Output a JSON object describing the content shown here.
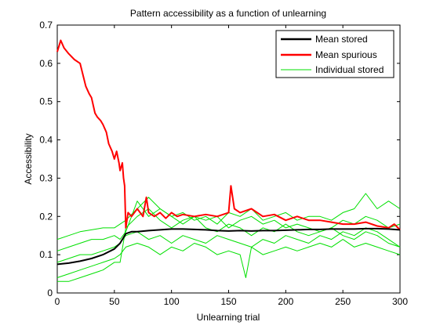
{
  "chart_data": {
    "type": "line",
    "title": "Pattern accessibility as a function of unlearning",
    "xlabel": "Unlearning trial",
    "ylabel": "Accessibility",
    "xlim": [
      0,
      300
    ],
    "ylim": [
      0,
      0.7
    ],
    "xticks": [
      "0",
      "50",
      "100",
      "150",
      "200",
      "250",
      "300"
    ],
    "yticks": [
      "0",
      "0.1",
      "0.2",
      "0.3",
      "0.4",
      "0.5",
      "0.6",
      "0.7"
    ],
    "grid": false,
    "legend_position": "top-right",
    "legend": [
      "Mean stored",
      "Mean spurious",
      "Individual stored"
    ],
    "series": [
      {
        "name": "Mean stored",
        "color": "#000000",
        "x": [
          0,
          10,
          20,
          30,
          40,
          50,
          55,
          60,
          65,
          70,
          80,
          90,
          100,
          110,
          120,
          130,
          140,
          150,
          160,
          170,
          180,
          190,
          200,
          210,
          220,
          230,
          240,
          250,
          260,
          270,
          280,
          290,
          300
        ],
        "y": [
          0.075,
          0.078,
          0.083,
          0.09,
          0.1,
          0.115,
          0.13,
          0.155,
          0.16,
          0.16,
          0.163,
          0.165,
          0.167,
          0.167,
          0.166,
          0.165,
          0.163,
          0.162,
          0.163,
          0.162,
          0.163,
          0.163,
          0.164,
          0.165,
          0.166,
          0.166,
          0.167,
          0.167,
          0.167,
          0.168,
          0.168,
          0.167,
          0.165
        ]
      },
      {
        "name": "Mean spurious",
        "color": "#ff0000",
        "x": [
          0,
          3,
          6,
          10,
          15,
          20,
          25,
          28,
          30,
          33,
          35,
          38,
          40,
          43,
          45,
          48,
          50,
          52,
          54,
          55,
          57,
          58,
          59,
          60,
          62,
          65,
          70,
          75,
          78,
          80,
          85,
          90,
          95,
          100,
          105,
          110,
          120,
          130,
          140,
          150,
          152,
          155,
          160,
          170,
          180,
          190,
          200,
          210,
          220,
          230,
          240,
          250,
          260,
          270,
          280,
          290,
          295,
          300
        ],
        "y": [
          0.63,
          0.66,
          0.64,
          0.625,
          0.61,
          0.6,
          0.54,
          0.52,
          0.51,
          0.47,
          0.46,
          0.45,
          0.44,
          0.42,
          0.39,
          0.37,
          0.35,
          0.37,
          0.34,
          0.32,
          0.34,
          0.3,
          0.28,
          0.17,
          0.21,
          0.2,
          0.22,
          0.2,
          0.25,
          0.21,
          0.2,
          0.21,
          0.195,
          0.21,
          0.2,
          0.205,
          0.2,
          0.205,
          0.2,
          0.21,
          0.28,
          0.22,
          0.21,
          0.22,
          0.2,
          0.205,
          0.19,
          0.2,
          0.19,
          0.19,
          0.185,
          0.18,
          0.18,
          0.185,
          0.175,
          0.17,
          0.18,
          0.165
        ]
      },
      {
        "name": "Individual stored",
        "color": "#00e000",
        "lines": [
          {
            "x": [
              0,
              10,
              20,
              30,
              40,
              50,
              55,
              60,
              70,
              80,
              90,
              100,
              110,
              120,
              130,
              140,
              150,
              160,
              170,
              180,
              190,
              200,
              210,
              220,
              230,
              240,
              250,
              260,
              270,
              280,
              290,
              300
            ],
            "y": [
              0.14,
              0.15,
              0.16,
              0.165,
              0.17,
              0.17,
              0.18,
              0.19,
              0.22,
              0.25,
              0.22,
              0.2,
              0.21,
              0.19,
              0.2,
              0.18,
              0.21,
              0.2,
              0.22,
              0.19,
              0.2,
              0.21,
              0.19,
              0.2,
              0.2,
              0.19,
              0.21,
              0.22,
              0.26,
              0.22,
              0.24,
              0.22
            ]
          },
          {
            "x": [
              0,
              10,
              20,
              30,
              40,
              50,
              55,
              60,
              70,
              80,
              90,
              100,
              110,
              120,
              130,
              140,
              150,
              160,
              170,
              180,
              190,
              200,
              210,
              220,
              230,
              240,
              250,
              260,
              270,
              280,
              290,
              300
            ],
            "y": [
              0.11,
              0.12,
              0.13,
              0.14,
              0.14,
              0.15,
              0.14,
              0.16,
              0.24,
              0.2,
              0.22,
              0.2,
              0.18,
              0.2,
              0.19,
              0.2,
              0.17,
              0.19,
              0.2,
              0.18,
              0.19,
              0.17,
              0.18,
              0.17,
              0.16,
              0.17,
              0.19,
              0.18,
              0.2,
              0.19,
              0.17,
              0.18
            ]
          },
          {
            "x": [
              0,
              10,
              20,
              30,
              40,
              50,
              55,
              60,
              70,
              80,
              90,
              100,
              110,
              120,
              130,
              140,
              150,
              160,
              170,
              180,
              190,
              200,
              210,
              220,
              230,
              240,
              250,
              260,
              270,
              280,
              290,
              300
            ],
            "y": [
              0.08,
              0.09,
              0.1,
              0.1,
              0.11,
              0.12,
              0.13,
              0.15,
              0.16,
              0.14,
              0.15,
              0.13,
              0.15,
              0.14,
              0.13,
              0.15,
              0.14,
              0.13,
              0.12,
              0.14,
              0.13,
              0.15,
              0.14,
              0.13,
              0.15,
              0.14,
              0.16,
              0.15,
              0.17,
              0.16,
              0.14,
              0.12
            ]
          },
          {
            "x": [
              0,
              10,
              20,
              30,
              40,
              50,
              55,
              60,
              70,
              80,
              90,
              100,
              110,
              120,
              130,
              140,
              150,
              160,
              165,
              170,
              180,
              190,
              200,
              210,
              220,
              230,
              240,
              250,
              260,
              270,
              280,
              290,
              300
            ],
            "y": [
              0.04,
              0.05,
              0.06,
              0.07,
              0.08,
              0.09,
              0.1,
              0.12,
              0.13,
              0.12,
              0.1,
              0.12,
              0.11,
              0.13,
              0.12,
              0.1,
              0.11,
              0.1,
              0.04,
              0.12,
              0.1,
              0.11,
              0.12,
              0.11,
              0.12,
              0.13,
              0.12,
              0.14,
              0.12,
              0.13,
              0.12,
              0.11,
              0.1
            ]
          },
          {
            "x": [
              0,
              10,
              20,
              30,
              40,
              50,
              55,
              60,
              70,
              80,
              90,
              100,
              110,
              120,
              130,
              140,
              150,
              160,
              170,
              180,
              190,
              200,
              210,
              220,
              230,
              240,
              250,
              260,
              270,
              280,
              290,
              300
            ],
            "y": [
              0.03,
              0.03,
              0.04,
              0.05,
              0.06,
              0.08,
              0.08,
              0.17,
              0.2,
              0.22,
              0.19,
              0.17,
              0.19,
              0.2,
              0.17,
              0.16,
              0.18,
              0.17,
              0.15,
              0.17,
              0.16,
              0.18,
              0.16,
              0.15,
              0.16,
              0.17,
              0.15,
              0.14,
              0.16,
              0.15,
              0.13,
              0.12
            ]
          }
        ]
      }
    ]
  }
}
